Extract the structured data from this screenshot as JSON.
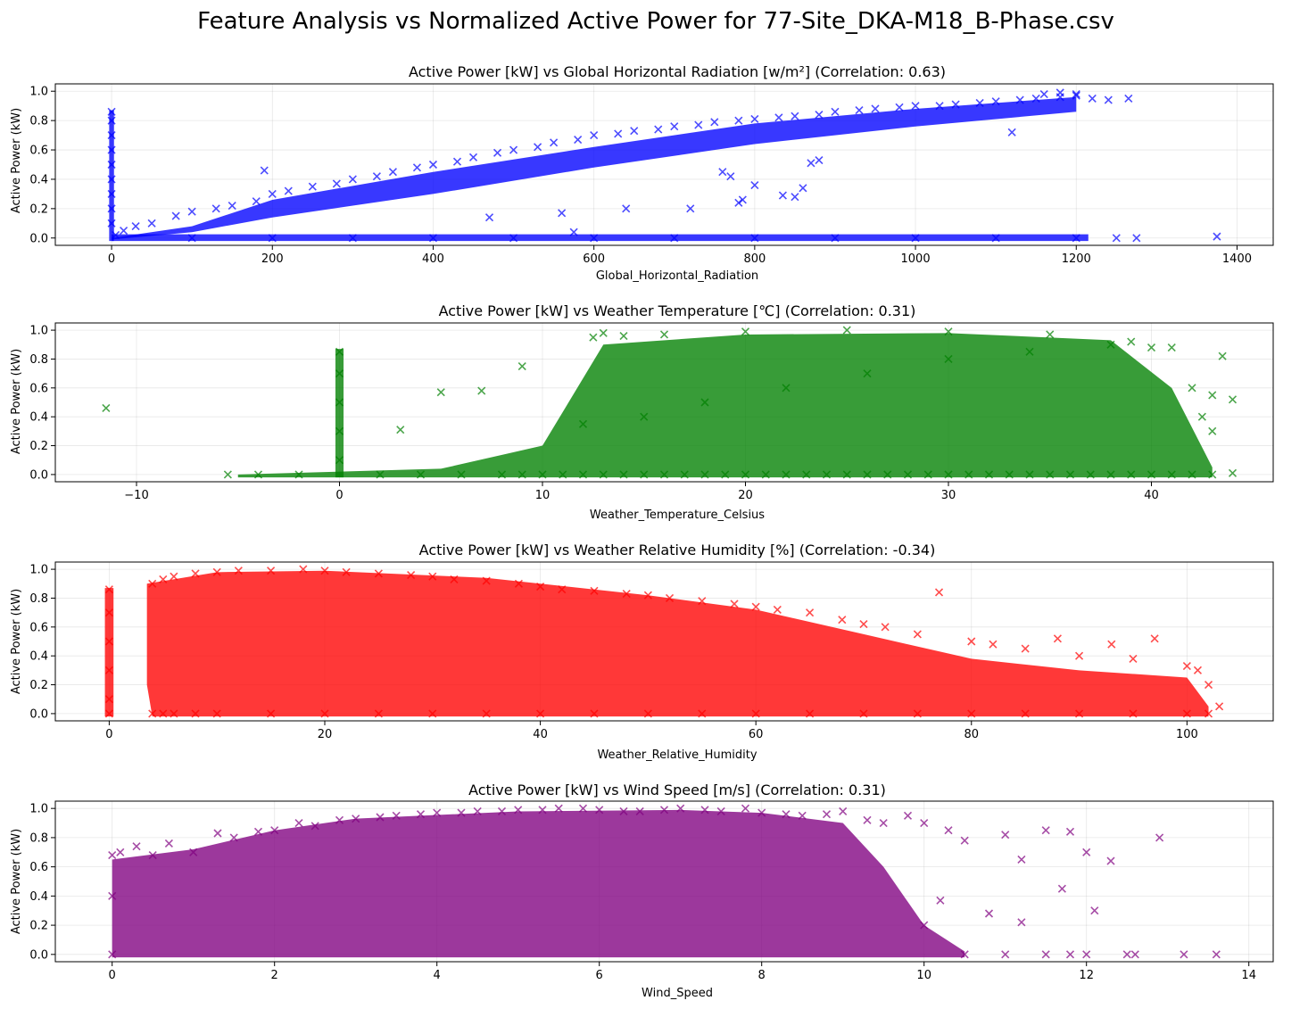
{
  "suptitle": "Feature Analysis vs Normalized Active Power for 77-Site_DKA-M18_B-Phase.csv",
  "chart_data": [
    {
      "type": "scatter",
      "title": "Active Power [kW] vs Global Horizontal Radiation [w/m²] (Correlation: 0.63)",
      "xlabel": "Global_Horizontal_Radiation",
      "ylabel": "Active Power (kW)",
      "color": "#0000ff",
      "marker": "x",
      "grid": true,
      "xlim": [
        -70,
        1445
      ],
      "ylim": [
        -0.05,
        1.05
      ],
      "xticks": [
        0,
        200,
        400,
        600,
        800,
        1000,
        1200,
        1400
      ],
      "yticks": [
        0.0,
        0.2,
        0.4,
        0.6,
        0.8,
        1.0
      ],
      "series": [
        {
          "x": [
            0,
            0,
            0,
            0,
            0,
            0,
            0,
            0,
            0,
            5,
            15,
            30,
            50,
            80,
            100,
            130,
            150,
            180,
            200,
            220,
            250,
            280,
            300,
            330,
            350,
            380,
            400,
            430,
            450,
            480,
            500,
            530,
            550,
            580,
            600,
            630,
            650,
            680,
            700,
            730,
            750,
            780,
            800,
            830,
            850,
            880,
            900,
            930,
            950,
            980,
            1000,
            1030,
            1050,
            1080,
            1100,
            1130,
            1150,
            1180,
            1200,
            1220,
            1240,
            1265,
            1160,
            1180,
            1200,
            100,
            200,
            300,
            400,
            500,
            600,
            700,
            800,
            900,
            1000,
            1100,
            1200,
            1250,
            1275,
            1375,
            190,
            470,
            560,
            575,
            640,
            720,
            760,
            770,
            780,
            785,
            800,
            835,
            850,
            860,
            870,
            880,
            1120
          ],
          "y": [
            0.86,
            0.8,
            0.7,
            0.6,
            0.5,
            0.4,
            0.3,
            0.2,
            0.1,
            0.02,
            0.05,
            0.08,
            0.1,
            0.15,
            0.18,
            0.2,
            0.22,
            0.25,
            0.3,
            0.32,
            0.35,
            0.37,
            0.4,
            0.42,
            0.45,
            0.48,
            0.5,
            0.52,
            0.55,
            0.58,
            0.6,
            0.62,
            0.65,
            0.67,
            0.7,
            0.71,
            0.73,
            0.74,
            0.76,
            0.77,
            0.79,
            0.8,
            0.81,
            0.82,
            0.83,
            0.84,
            0.86,
            0.87,
            0.88,
            0.89,
            0.9,
            0.9,
            0.91,
            0.92,
            0.93,
            0.94,
            0.95,
            0.96,
            0.97,
            0.95,
            0.94,
            0.95,
            0.98,
            0.99,
            0.98,
            0.0,
            0.0,
            0.0,
            0.0,
            0.0,
            0.0,
            0.0,
            0.0,
            0.0,
            0.0,
            0.0,
            0.0,
            0.0,
            0.0,
            0.01,
            0.46,
            0.14,
            0.17,
            0.04,
            0.2,
            0.2,
            0.45,
            0.42,
            0.24,
            0.26,
            0.36,
            0.29,
            0.28,
            0.34,
            0.51,
            0.53,
            0.72
          ]
        }
      ]
    },
    {
      "type": "scatter",
      "title": "Active Power [kW] vs Weather Temperature [℃] (Correlation: 0.31)",
      "xlabel": "Weather_Temperature_Celsius",
      "ylabel": "Active Power (kW)",
      "color": "#008000",
      "marker": "x",
      "grid": true,
      "xlim": [
        -14,
        46
      ],
      "ylim": [
        -0.05,
        1.05
      ],
      "xticks": [
        -10,
        0,
        10,
        20,
        30,
        40
      ],
      "yticks": [
        0.0,
        0.2,
        0.4,
        0.6,
        0.8,
        1.0
      ],
      "series": [
        {
          "x": [
            -11.5,
            0,
            0,
            0,
            0,
            0,
            -5.5,
            -4,
            -2,
            2,
            4,
            6,
            8,
            9,
            10,
            11,
            12,
            13,
            14,
            15,
            16,
            17,
            18,
            19,
            20,
            21,
            22,
            23,
            24,
            25,
            26,
            27,
            28,
            29,
            30,
            31,
            32,
            33,
            34,
            35,
            36,
            37,
            38,
            39,
            40,
            41,
            42,
            43,
            44,
            5,
            7,
            9,
            3,
            12,
            15,
            18,
            22,
            26,
            30,
            34,
            38,
            41,
            42,
            43,
            44,
            43.5,
            42.5,
            43,
            12.5,
            13,
            14,
            16,
            20,
            25,
            30,
            35,
            39,
            40
          ],
          "y": [
            0.46,
            0.85,
            0.7,
            0.5,
            0.3,
            0.1,
            0.0,
            0.0,
            0.0,
            0.0,
            0.0,
            0.0,
            0.0,
            0.0,
            0.0,
            0.0,
            0.0,
            0.0,
            0.0,
            0.0,
            0.0,
            0.0,
            0.0,
            0.0,
            0.0,
            0.0,
            0.0,
            0.0,
            0.0,
            0.0,
            0.0,
            0.0,
            0.0,
            0.0,
            0.0,
            0.0,
            0.0,
            0.0,
            0.0,
            0.0,
            0.0,
            0.0,
            0.0,
            0.0,
            0.0,
            0.0,
            0.0,
            0.0,
            0.01,
            0.57,
            0.58,
            0.75,
            0.31,
            0.35,
            0.4,
            0.5,
            0.6,
            0.7,
            0.8,
            0.85,
            0.9,
            0.88,
            0.6,
            0.55,
            0.52,
            0.82,
            0.4,
            0.3,
            0.95,
            0.98,
            0.96,
            0.97,
            0.99,
            1.0,
            0.99,
            0.97,
            0.92,
            0.88
          ]
        }
      ]
    },
    {
      "type": "scatter",
      "title": "Active Power [kW] vs Weather Relative Humidity [%] (Correlation: -0.34)",
      "xlabel": "Weather_Relative_Humidity",
      "ylabel": "Active Power (kW)",
      "color": "#ff0000",
      "marker": "x",
      "grid": true,
      "xlim": [
        -5,
        108
      ],
      "ylim": [
        -0.05,
        1.05
      ],
      "xticks": [
        0,
        20,
        40,
        60,
        80,
        100
      ],
      "yticks": [
        0.0,
        0.2,
        0.4,
        0.6,
        0.8,
        1.0
      ],
      "series": [
        {
          "x": [
            0,
            0,
            0,
            0,
            0,
            0,
            4,
            5,
            6,
            8,
            10,
            12,
            15,
            18,
            20,
            22,
            25,
            28,
            30,
            32,
            35,
            38,
            40,
            42,
            45,
            48,
            50,
            52,
            55,
            58,
            60,
            62,
            65,
            68,
            70,
            72,
            75,
            77,
            80,
            82,
            85,
            88,
            90,
            93,
            95,
            97,
            100,
            101,
            102,
            103,
            4,
            5,
            6,
            8,
            10,
            15,
            20,
            25,
            30,
            35,
            40,
            45,
            50,
            55,
            60,
            65,
            70,
            75,
            80,
            85,
            90,
            95,
            100,
            102
          ],
          "y": [
            0.86,
            0.7,
            0.5,
            0.3,
            0.1,
            0.0,
            0.9,
            0.93,
            0.95,
            0.97,
            0.98,
            0.99,
            0.99,
            1.0,
            0.99,
            0.98,
            0.97,
            0.96,
            0.95,
            0.93,
            0.92,
            0.9,
            0.88,
            0.86,
            0.85,
            0.83,
            0.82,
            0.8,
            0.78,
            0.76,
            0.74,
            0.72,
            0.7,
            0.65,
            0.62,
            0.6,
            0.55,
            0.84,
            0.5,
            0.48,
            0.45,
            0.52,
            0.4,
            0.48,
            0.38,
            0.52,
            0.33,
            0.3,
            0.2,
            0.05,
            0.0,
            0.0,
            0.0,
            0.0,
            0.0,
            0.0,
            0.0,
            0.0,
            0.0,
            0.0,
            0.0,
            0.0,
            0.0,
            0.0,
            0.0,
            0.0,
            0.0,
            0.0,
            0.0,
            0.0,
            0.0,
            0.0,
            0.0,
            0.0
          ]
        }
      ]
    },
    {
      "type": "scatter",
      "title": "Active Power [kW] vs Wind Speed [m/s] (Correlation: 0.31)",
      "xlabel": "Wind_Speed",
      "ylabel": "Active Power (kW)",
      "color": "#800080",
      "marker": "x",
      "grid": true,
      "xlim": [
        -0.7,
        14.3
      ],
      "ylim": [
        -0.05,
        1.05
      ],
      "xticks": [
        0,
        2,
        4,
        6,
        8,
        10,
        12,
        14
      ],
      "yticks": [
        0.0,
        0.2,
        0.4,
        0.6,
        0.8,
        1.0
      ],
      "series": [
        {
          "x": [
            0,
            0,
            0,
            0.1,
            0.3,
            0.5,
            0.7,
            1.0,
            1.3,
            1.5,
            1.8,
            2.0,
            2.3,
            2.5,
            2.8,
            3.0,
            3.3,
            3.5,
            3.8,
            4.0,
            4.3,
            4.5,
            4.8,
            5.0,
            5.3,
            5.5,
            5.8,
            6.0,
            6.3,
            6.5,
            6.8,
            7.0,
            7.3,
            7.5,
            7.8,
            8.0,
            8.3,
            8.5,
            8.8,
            9.0,
            9.3,
            9.5,
            9.8,
            10.0,
            10.3,
            10.5,
            11.0,
            11.2,
            11.5,
            11.8,
            12.0,
            12.1,
            12.3,
            12.9,
            12.5,
            12.6,
            13.2,
            13.6,
            11.0,
            11.5,
            11.7,
            11.8,
            12.0,
            10.8,
            11.2,
            10.5,
            10.2,
            10.0
          ],
          "y": [
            0.68,
            0.4,
            0.0,
            0.7,
            0.74,
            0.68,
            0.76,
            0.7,
            0.83,
            0.8,
            0.84,
            0.85,
            0.9,
            0.88,
            0.92,
            0.93,
            0.94,
            0.95,
            0.96,
            0.97,
            0.97,
            0.98,
            0.98,
            0.99,
            0.99,
            1.0,
            1.0,
            0.99,
            0.98,
            0.98,
            0.99,
            1.0,
            0.99,
            0.98,
            1.0,
            0.97,
            0.96,
            0.95,
            0.96,
            0.98,
            0.92,
            0.9,
            0.95,
            0.9,
            0.85,
            0.78,
            0.82,
            0.65,
            0.85,
            0.84,
            0.7,
            0.3,
            0.64,
            0.8,
            0.0,
            0.0,
            0.0,
            0.0,
            0.0,
            0.0,
            0.45,
            0.0,
            0.0,
            0.28,
            0.22,
            0.0,
            0.37,
            0.2
          ]
        }
      ]
    }
  ]
}
